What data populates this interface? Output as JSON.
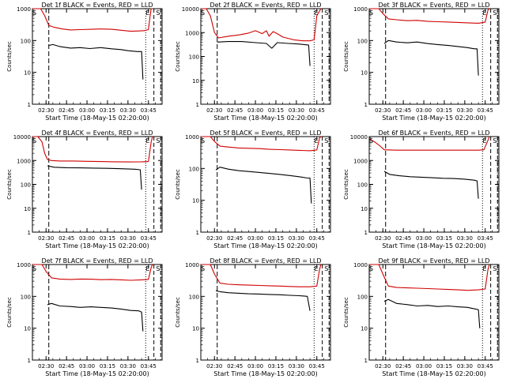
{
  "chart_data": [
    {
      "type": "line",
      "title": "Det 1f BLACK = Events, RED = LLD",
      "xlabel": "Start Time (18-May-15 02:20:00)",
      "ylabel": "Counts/sec",
      "yscale": "log",
      "ylim": [
        1,
        1000
      ],
      "xlim": [
        "02:20",
        "03:55"
      ],
      "xticks": [
        "02:30",
        "02:45",
        "03:00",
        "03:15",
        "03:30",
        "03:45"
      ],
      "yticks": [
        "1",
        "10",
        "100",
        "1000"
      ],
      "markers": [
        "S",
        "E",
        "S"
      ],
      "series": [
        {
          "name": "LLD",
          "color": "#d00000",
          "x": [
            "02:20",
            "02:22",
            "02:24",
            "02:26",
            "02:29",
            "02:32",
            "02:36",
            "02:42",
            "02:48",
            "02:55",
            "03:03",
            "03:10",
            "03:18",
            "03:25",
            "03:32",
            "03:38",
            "03:42",
            "03:45",
            "03:46",
            "03:47",
            "03:48"
          ],
          "values": [
            1000,
            1000,
            1000,
            1000,
            600,
            300,
            260,
            230,
            215,
            220,
            225,
            230,
            225,
            210,
            195,
            200,
            205,
            220,
            500,
            1000,
            1000
          ]
        },
        {
          "name": "Events",
          "color": "#000000",
          "x": [
            "02:32",
            "02:35",
            "02:40",
            "02:48",
            "02:55",
            "03:02",
            "03:10",
            "03:18",
            "03:25",
            "03:30",
            "03:37",
            "03:40",
            "03:41"
          ],
          "values": [
            70,
            75,
            65,
            58,
            60,
            56,
            60,
            55,
            52,
            48,
            45,
            45,
            6
          ]
        }
      ]
    },
    {
      "type": "line",
      "title": "Det 2f BLACK = Events, RED = LLD",
      "xlabel": "Start Time (18-May-15 02:20:00)",
      "ylabel": "Counts/sec",
      "yscale": "log",
      "ylim": [
        1,
        10000
      ],
      "xlim": [
        "02:20",
        "03:55"
      ],
      "xticks": [
        "02:30",
        "02:45",
        "03:00",
        "03:15",
        "03:30",
        "03:45"
      ],
      "yticks": [
        "1",
        "10",
        "100",
        "1000",
        "10000"
      ],
      "markers": [
        "S",
        "E",
        "S"
      ],
      "series": [
        {
          "name": "LLD",
          "color": "#d00000",
          "x": [
            "02:20",
            "02:24",
            "02:27",
            "02:30",
            "02:33",
            "02:40",
            "02:48",
            "02:55",
            "03:00",
            "03:05",
            "03:08",
            "03:10",
            "03:13",
            "03:16",
            "03:20",
            "03:28",
            "03:35",
            "03:40",
            "03:43",
            "03:45",
            "03:48"
          ],
          "values": [
            10000,
            10000,
            5000,
            1000,
            600,
            700,
            800,
            950,
            1200,
            900,
            1200,
            700,
            1100,
            900,
            650,
            500,
            450,
            450,
            500,
            5000,
            10000
          ]
        },
        {
          "name": "Events",
          "color": "#000000",
          "x": [
            "02:32",
            "02:40",
            "02:50",
            "03:00",
            "03:08",
            "03:12",
            "03:16",
            "03:24",
            "03:32",
            "03:39",
            "03:40"
          ],
          "values": [
            400,
            420,
            420,
            380,
            350,
            220,
            380,
            350,
            330,
            300,
            40
          ]
        }
      ]
    },
    {
      "type": "line",
      "title": "Det 3f BLACK = Events, RED = LLD",
      "xlabel": "Start Time (18-May-15 02:20:00)",
      "ylabel": "Counts/sec",
      "yscale": "log",
      "ylim": [
        1,
        1000
      ],
      "xlim": [
        "02:20",
        "03:55"
      ],
      "xticks": [
        "02:30",
        "02:45",
        "03:00",
        "03:15",
        "03:30",
        "03:45"
      ],
      "yticks": [
        "1",
        "10",
        "100",
        "1000"
      ],
      "markers": [
        "S",
        "E",
        "S"
      ],
      "series": [
        {
          "name": "LLD",
          "color": "#d00000",
          "x": [
            "02:20",
            "02:24",
            "02:27",
            "02:30",
            "02:34",
            "02:40",
            "02:48",
            "02:55",
            "03:03",
            "03:10",
            "03:18",
            "03:25",
            "03:32",
            "03:40",
            "03:45",
            "03:47",
            "03:48"
          ],
          "values": [
            1000,
            1000,
            1000,
            700,
            480,
            450,
            420,
            430,
            400,
            390,
            380,
            370,
            360,
            350,
            380,
            900,
            1000
          ]
        },
        {
          "name": "Events",
          "color": "#000000",
          "x": [
            "02:31",
            "02:34",
            "02:40",
            "02:48",
            "02:55",
            "03:03",
            "03:10",
            "03:18",
            "03:25",
            "03:32",
            "03:37",
            "03:39",
            "03:40"
          ],
          "values": [
            80,
            100,
            90,
            85,
            90,
            80,
            75,
            70,
            65,
            60,
            55,
            55,
            8
          ]
        }
      ]
    },
    {
      "type": "line",
      "title": "Det 4f BLACK = Events, RED = LLD",
      "xlabel": "Start Time (18-May-15 02:20:00)",
      "ylabel": "Counts/sec",
      "yscale": "log",
      "ylim": [
        1,
        10000
      ],
      "xlim": [
        "02:20",
        "03:55"
      ],
      "xticks": [
        "02:30",
        "02:45",
        "03:00",
        "03:15",
        "03:30",
        "03:45"
      ],
      "yticks": [
        "1",
        "10",
        "100",
        "1000",
        "10000"
      ],
      "markers": [
        "S",
        "E",
        "S"
      ],
      "series": [
        {
          "name": "LLD",
          "color": "#d00000",
          "x": [
            "02:20",
            "02:24",
            "02:27",
            "02:29",
            "02:31",
            "02:34",
            "02:40",
            "02:50",
            "03:00",
            "03:10",
            "03:20",
            "03:30",
            "03:40",
            "03:45",
            "03:47",
            "03:48"
          ],
          "values": [
            10000,
            10000,
            6000,
            2000,
            1100,
            1000,
            950,
            950,
            920,
            900,
            880,
            870,
            880,
            900,
            6000,
            10000
          ]
        },
        {
          "name": "Events",
          "color": "#000000",
          "x": [
            "02:31",
            "02:36",
            "02:45",
            "02:55",
            "03:05",
            "03:15",
            "03:25",
            "03:35",
            "03:39",
            "03:40"
          ],
          "values": [
            600,
            520,
            500,
            490,
            480,
            470,
            450,
            430,
            410,
            60
          ]
        }
      ]
    },
    {
      "type": "line",
      "title": "Det 5f BLACK = Events, RED = LLD",
      "xlabel": "Start Time (18-May-15 02:20:00)",
      "ylabel": "Counts/sec",
      "yscale": "log",
      "ylim": [
        1,
        1000
      ],
      "xlim": [
        "02:20",
        "03:55"
      ],
      "xticks": [
        "02:30",
        "02:45",
        "03:00",
        "03:15",
        "03:30",
        "03:45"
      ],
      "yticks": [
        "1",
        "10",
        "100",
        "1000"
      ],
      "markers": [
        "S",
        "E",
        "S"
      ],
      "series": [
        {
          "name": "LLD",
          "color": "#d00000",
          "x": [
            "02:20",
            "02:24",
            "02:27",
            "02:30",
            "02:34",
            "02:40",
            "02:48",
            "02:55",
            "03:03",
            "03:10",
            "03:18",
            "03:25",
            "03:32",
            "03:40",
            "03:45",
            "03:47",
            "03:48"
          ],
          "values": [
            1000,
            1000,
            1000,
            700,
            500,
            470,
            440,
            430,
            420,
            400,
            390,
            380,
            370,
            360,
            380,
            900,
            1000
          ]
        },
        {
          "name": "Events",
          "color": "#000000",
          "x": [
            "02:31",
            "02:34",
            "02:40",
            "02:48",
            "02:55",
            "03:03",
            "03:10",
            "03:18",
            "03:25",
            "03:32",
            "03:38",
            "03:40",
            "03:41"
          ],
          "values": [
            90,
            110,
            95,
            85,
            80,
            75,
            70,
            65,
            60,
            55,
            50,
            50,
            8
          ]
        }
      ]
    },
    {
      "type": "line",
      "title": "Det 6f BLACK = Events, RED = LLD",
      "xlabel": "Start Time (18-May-15 02:20:00)",
      "ylabel": "Counts/sec",
      "yscale": "log",
      "ylim": [
        1,
        10000
      ],
      "xlim": [
        "02:20",
        "03:55"
      ],
      "xticks": [
        "02:30",
        "02:45",
        "03:00",
        "03:15",
        "03:30",
        "03:45"
      ],
      "yticks": [
        "1",
        "10",
        "100",
        "1000",
        "10000"
      ],
      "markers": [
        "S",
        "E",
        "S"
      ],
      "series": [
        {
          "name": "LLD",
          "color": "#d00000",
          "x": [
            "02:20",
            "02:24",
            "02:28",
            "02:31",
            "02:40",
            "02:50",
            "03:00",
            "03:10",
            "03:20",
            "03:30",
            "03:40",
            "03:44",
            "03:47",
            "03:48"
          ],
          "values": [
            8000,
            6000,
            4000,
            2800,
            2700,
            2700,
            2700,
            2700,
            2700,
            2700,
            2700,
            2800,
            7000,
            10000
          ]
        },
        {
          "name": "Events",
          "color": "#000000",
          "x": [
            "02:31",
            "02:35",
            "02:42",
            "02:50",
            "02:58",
            "03:06",
            "03:14",
            "03:22",
            "03:30",
            "03:37",
            "03:39",
            "03:40"
          ],
          "values": [
            350,
            260,
            230,
            210,
            200,
            190,
            180,
            175,
            165,
            150,
            140,
            25
          ]
        }
      ]
    },
    {
      "type": "line",
      "title": "Det 7f BLACK = Events, RED = LLD",
      "xlabel": "Start Time (18-May-15 02:20:00)",
      "ylabel": "Counts/sec",
      "yscale": "log",
      "ylim": [
        1,
        1000
      ],
      "xlim": [
        "02:20",
        "03:55"
      ],
      "xticks": [
        "02:30",
        "02:45",
        "03:00",
        "03:15",
        "03:30",
        "03:45"
      ],
      "yticks": [
        "1",
        "10",
        "100",
        "1000"
      ],
      "markers": [
        "S",
        "E",
        "S"
      ],
      "series": [
        {
          "name": "LLD",
          "color": "#d00000",
          "x": [
            "02:20",
            "02:24",
            "02:27",
            "02:30",
            "02:34",
            "02:40",
            "02:48",
            "02:55",
            "03:03",
            "03:10",
            "03:18",
            "03:25",
            "03:32",
            "03:40",
            "03:45",
            "03:47",
            "03:48"
          ],
          "values": [
            1000,
            1000,
            1000,
            600,
            380,
            350,
            340,
            350,
            345,
            335,
            340,
            330,
            320,
            330,
            340,
            800,
            1000
          ]
        },
        {
          "name": "Events",
          "color": "#000000",
          "x": [
            "02:31",
            "02:34",
            "02:40",
            "02:48",
            "02:55",
            "03:03",
            "03:10",
            "03:18",
            "03:25",
            "03:32",
            "03:38",
            "03:40",
            "03:41"
          ],
          "values": [
            55,
            60,
            50,
            48,
            45,
            47,
            45,
            43,
            40,
            36,
            35,
            32,
            8
          ]
        }
      ]
    },
    {
      "type": "line",
      "title": "Det 8f BLACK = Events, RED = LLD",
      "xlabel": "Start Time (18-May-15 02:20:00)",
      "ylabel": "Counts/sec",
      "yscale": "log",
      "ylim": [
        1,
        1000
      ],
      "xlim": [
        "02:20",
        "03:55"
      ],
      "xticks": [
        "02:30",
        "02:45",
        "03:00",
        "03:15",
        "03:30",
        "03:45"
      ],
      "yticks": [
        "1",
        "10",
        "100",
        "1000"
      ],
      "markers": [
        "S",
        "E",
        "S"
      ],
      "series": [
        {
          "name": "LLD",
          "color": "#d00000",
          "x": [
            "02:20",
            "02:24",
            "02:27",
            "02:30",
            "02:34",
            "02:40",
            "02:48",
            "02:55",
            "03:03",
            "03:10",
            "03:18",
            "03:25",
            "03:32",
            "03:40",
            "03:45",
            "03:47",
            "03:48"
          ],
          "values": [
            1000,
            1000,
            1000,
            500,
            260,
            240,
            230,
            225,
            220,
            215,
            210,
            205,
            200,
            200,
            210,
            700,
            1000
          ]
        },
        {
          "name": "Events",
          "color": "#000000",
          "x": [
            "02:31",
            "02:34",
            "02:40",
            "02:48",
            "02:55",
            "03:03",
            "03:10",
            "03:18",
            "03:25",
            "03:32",
            "03:38",
            "03:40"
          ],
          "values": [
            150,
            140,
            130,
            125,
            120,
            118,
            115,
            112,
            108,
            105,
            100,
            35
          ]
        }
      ]
    },
    {
      "type": "line",
      "title": "Det 9f BLACK = Events, RED = LLD",
      "xlabel": "Start Time (18-May-15 02:20:00)",
      "ylabel": "Counts/sec",
      "yscale": "log",
      "ylim": [
        1,
        1000
      ],
      "xlim": [
        "02:20",
        "03:55"
      ],
      "xticks": [
        "02:30",
        "02:45",
        "03:00",
        "03:15",
        "03:30",
        "03:45"
      ],
      "yticks": [
        "1",
        "10",
        "100",
        "1000"
      ],
      "markers": [
        "S",
        "E",
        "S"
      ],
      "series": [
        {
          "name": "LLD",
          "color": "#d00000",
          "x": [
            "02:20",
            "02:24",
            "02:27",
            "02:30",
            "02:34",
            "02:40",
            "02:48",
            "02:55",
            "03:03",
            "03:10",
            "03:18",
            "03:25",
            "03:32",
            "03:40",
            "03:45",
            "03:47",
            "03:48"
          ],
          "values": [
            1000,
            1000,
            1000,
            500,
            210,
            190,
            185,
            180,
            175,
            170,
            165,
            160,
            155,
            160,
            170,
            700,
            1000
          ]
        },
        {
          "name": "Events",
          "color": "#000000",
          "x": [
            "02:31",
            "02:34",
            "02:40",
            "02:48",
            "02:55",
            "03:03",
            "03:10",
            "03:18",
            "03:25",
            "03:32",
            "03:38",
            "03:40",
            "03:41"
          ],
          "values": [
            70,
            80,
            60,
            55,
            50,
            52,
            48,
            50,
            47,
            45,
            40,
            38,
            10
          ]
        }
      ]
    }
  ]
}
